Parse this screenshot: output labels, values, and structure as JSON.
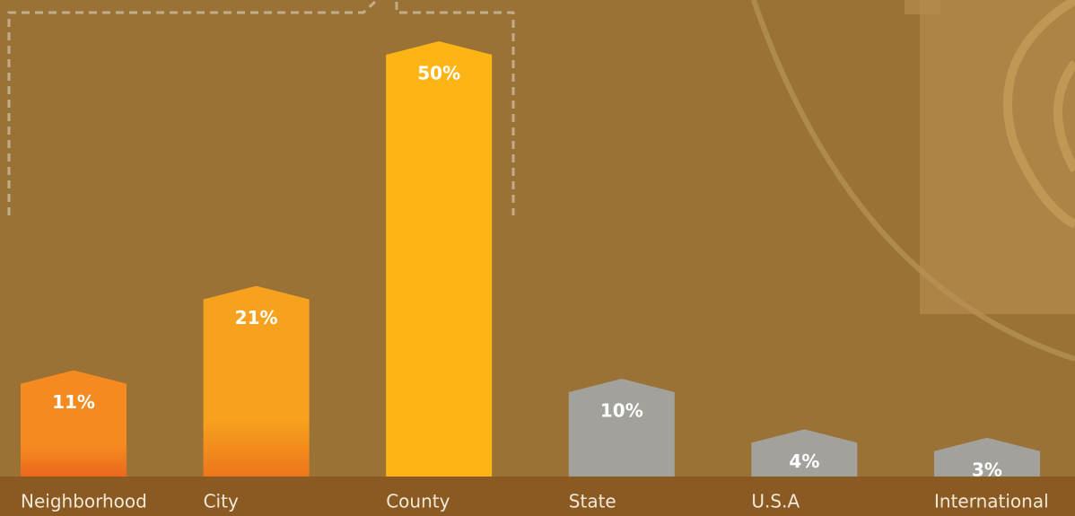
{
  "chart_data": {
    "type": "bar",
    "categories": [
      "Neighborhood",
      "City",
      "County",
      "State",
      "U.S.A",
      "International"
    ],
    "values": [
      11,
      21,
      50,
      10,
      4,
      3
    ],
    "value_labels": [
      "11%",
      "21%",
      "50%",
      "10%",
      "4%",
      "3%"
    ],
    "colors": [
      "#f58a20",
      "#f7a21e",
      "#fdb515",
      "#a3a19c",
      "#a3a19c",
      "#a3a19c"
    ],
    "ylim": [
      0,
      55
    ]
  }
}
